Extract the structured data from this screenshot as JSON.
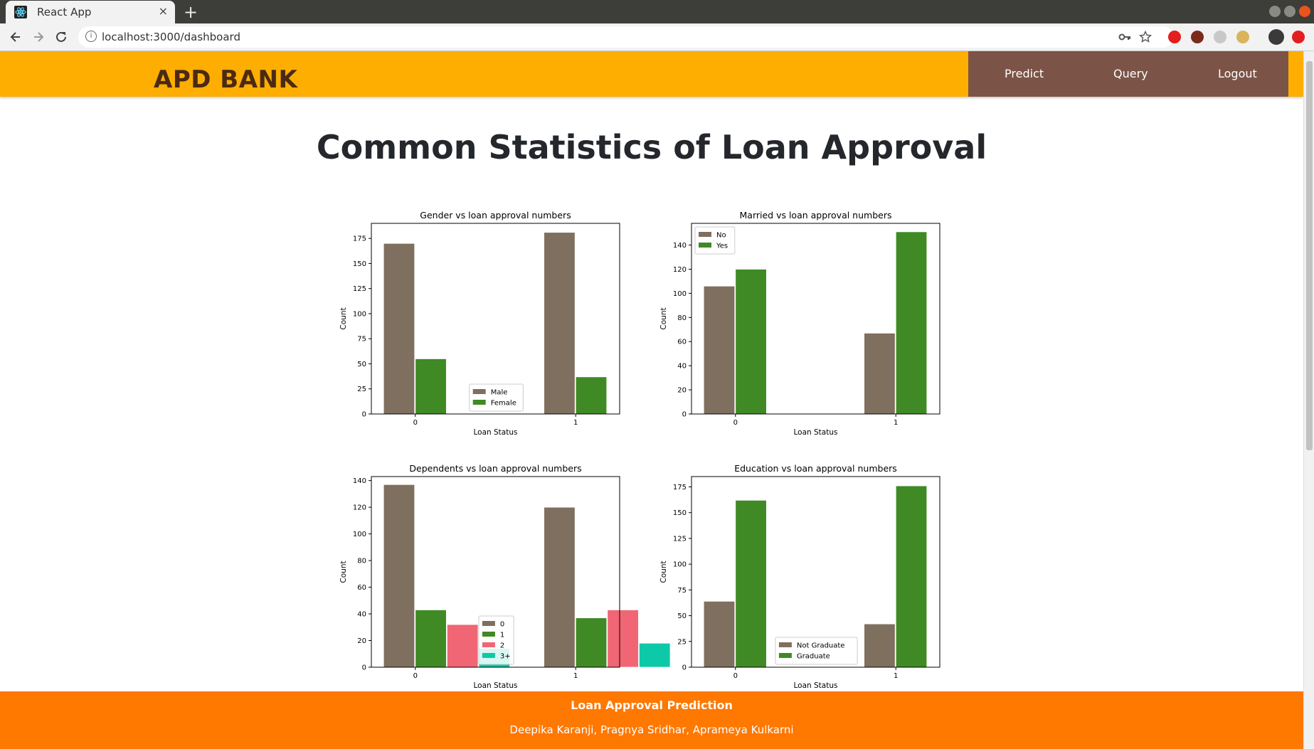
{
  "browser": {
    "tab_title": "React App",
    "tab_close": "×",
    "new_tab": "+",
    "url": "localhost:3000/dashboard",
    "info_glyph": "i"
  },
  "header": {
    "brand": "APD BANK",
    "nav": [
      "Predict",
      "Query",
      "Logout"
    ]
  },
  "page": {
    "title": "Common Statistics of Loan Approval"
  },
  "footer": {
    "title": "Loan Approval Prediction",
    "authors": "Deepika Karanji, Pragnya Sridhar, Aprameya Kulkarni"
  },
  "colors": {
    "header_bg": "#fdae00",
    "nav_bg": "#7b5447",
    "footer_bg": "#ff7800",
    "series_brown": "#7f6f5e",
    "series_green": "#3f8a24",
    "series_pink": "#f06674",
    "series_teal": "#0dc9a8"
  },
  "chart_data": [
    {
      "type": "bar",
      "title": "Gender vs loan approval numbers",
      "xlabel": "Loan Status",
      "ylabel": "Count",
      "categories": [
        "0",
        "1"
      ],
      "ylim": [
        0,
        190
      ],
      "yticks": [
        "0",
        "25",
        "50",
        "75",
        "100",
        "125",
        "150",
        "175"
      ],
      "legend": "lower-center",
      "series": [
        {
          "name": "Male",
          "color": "#7f6f5e",
          "values": [
            170,
            181
          ]
        },
        {
          "name": "Female",
          "color": "#3f8a24",
          "values": [
            55,
            37
          ]
        }
      ]
    },
    {
      "type": "bar",
      "title": "Married vs loan approval numbers",
      "xlabel": "Loan Status",
      "ylabel": "Count",
      "categories": [
        "0",
        "1"
      ],
      "ylim": [
        0,
        158
      ],
      "yticks": [
        "0",
        "20",
        "40",
        "60",
        "80",
        "100",
        "120",
        "140"
      ],
      "legend": "upper-left",
      "series": [
        {
          "name": "No",
          "color": "#7f6f5e",
          "values": [
            106,
            67
          ]
        },
        {
          "name": "Yes",
          "color": "#3f8a24",
          "values": [
            120,
            151
          ]
        }
      ]
    },
    {
      "type": "bar",
      "title": "Dependents vs loan approval numbers",
      "xlabel": "Loan Status",
      "ylabel": "Count",
      "categories": [
        "0",
        "1"
      ],
      "ylim": [
        0,
        143
      ],
      "yticks": [
        "0",
        "20",
        "40",
        "60",
        "80",
        "100",
        "120",
        "140"
      ],
      "legend": "lower-center",
      "series": [
        {
          "name": "0",
          "color": "#7f6f5e",
          "values": [
            137,
            120
          ]
        },
        {
          "name": "1",
          "color": "#3f8a24",
          "values": [
            43,
            37
          ]
        },
        {
          "name": "2",
          "color": "#f06674",
          "values": [
            32,
            43
          ]
        },
        {
          "name": "3+",
          "color": "#0dc9a8",
          "values": [
            14,
            18
          ]
        }
      ]
    },
    {
      "type": "bar",
      "title": "Education vs loan approval numbers",
      "xlabel": "Loan Status",
      "ylabel": "Count",
      "categories": [
        "0",
        "1"
      ],
      "ylim": [
        0,
        185
      ],
      "yticks": [
        "0",
        "25",
        "50",
        "75",
        "100",
        "125",
        "150",
        "175"
      ],
      "legend": "lower-center",
      "series": [
        {
          "name": "Not Graduate",
          "color": "#7f6f5e",
          "values": [
            64,
            42
          ]
        },
        {
          "name": "Graduate",
          "color": "#3f8a24",
          "values": [
            162,
            176
          ]
        }
      ]
    }
  ]
}
